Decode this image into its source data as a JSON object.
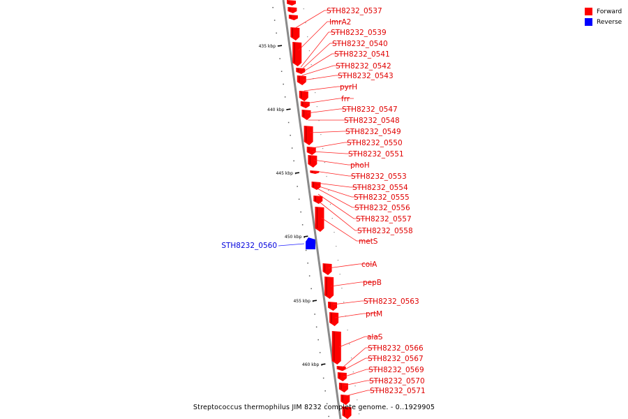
{
  "legend": {
    "forward_label": "Forward",
    "reverse_label": "Reverse",
    "forward_color": "#ff0000",
    "reverse_color": "#0000ff"
  },
  "caption": "Streptococcus thermophilus JIM 8232 complete genome. - 0..1929905",
  "scale_labels": [
    "435 kbp",
    "440 kbp",
    "445 kbp",
    "450 kbp",
    "455 kbp",
    "460 kbp"
  ],
  "gene_labels_forward": [
    "STH8232_0537",
    "lmrA2",
    "STH8232_0539",
    "STH8232_0540",
    "STH8232_0541",
    "STH8232_0542",
    "STH8232_0543",
    "pyrH",
    "frr",
    "STH8232_0547",
    "STH8232_0548",
    "STH8232_0549",
    "STH8232_0550",
    "STH8232_0551",
    "phoH",
    "STH8232_0553",
    "STH8232_0554",
    "STH8232_0555",
    "STH8232_0556",
    "STH8232_0557",
    "STH8232_0558",
    "metS",
    "coiA",
    "pepB",
    "STH8232_0563",
    "prtM",
    "alaS",
    "STH8232_0566",
    "STH8232_0567",
    "STH8232_0569",
    "STH8232_0570",
    "STH8232_0571"
  ],
  "gene_labels_reverse": [
    "STH8232_0560"
  ]
}
